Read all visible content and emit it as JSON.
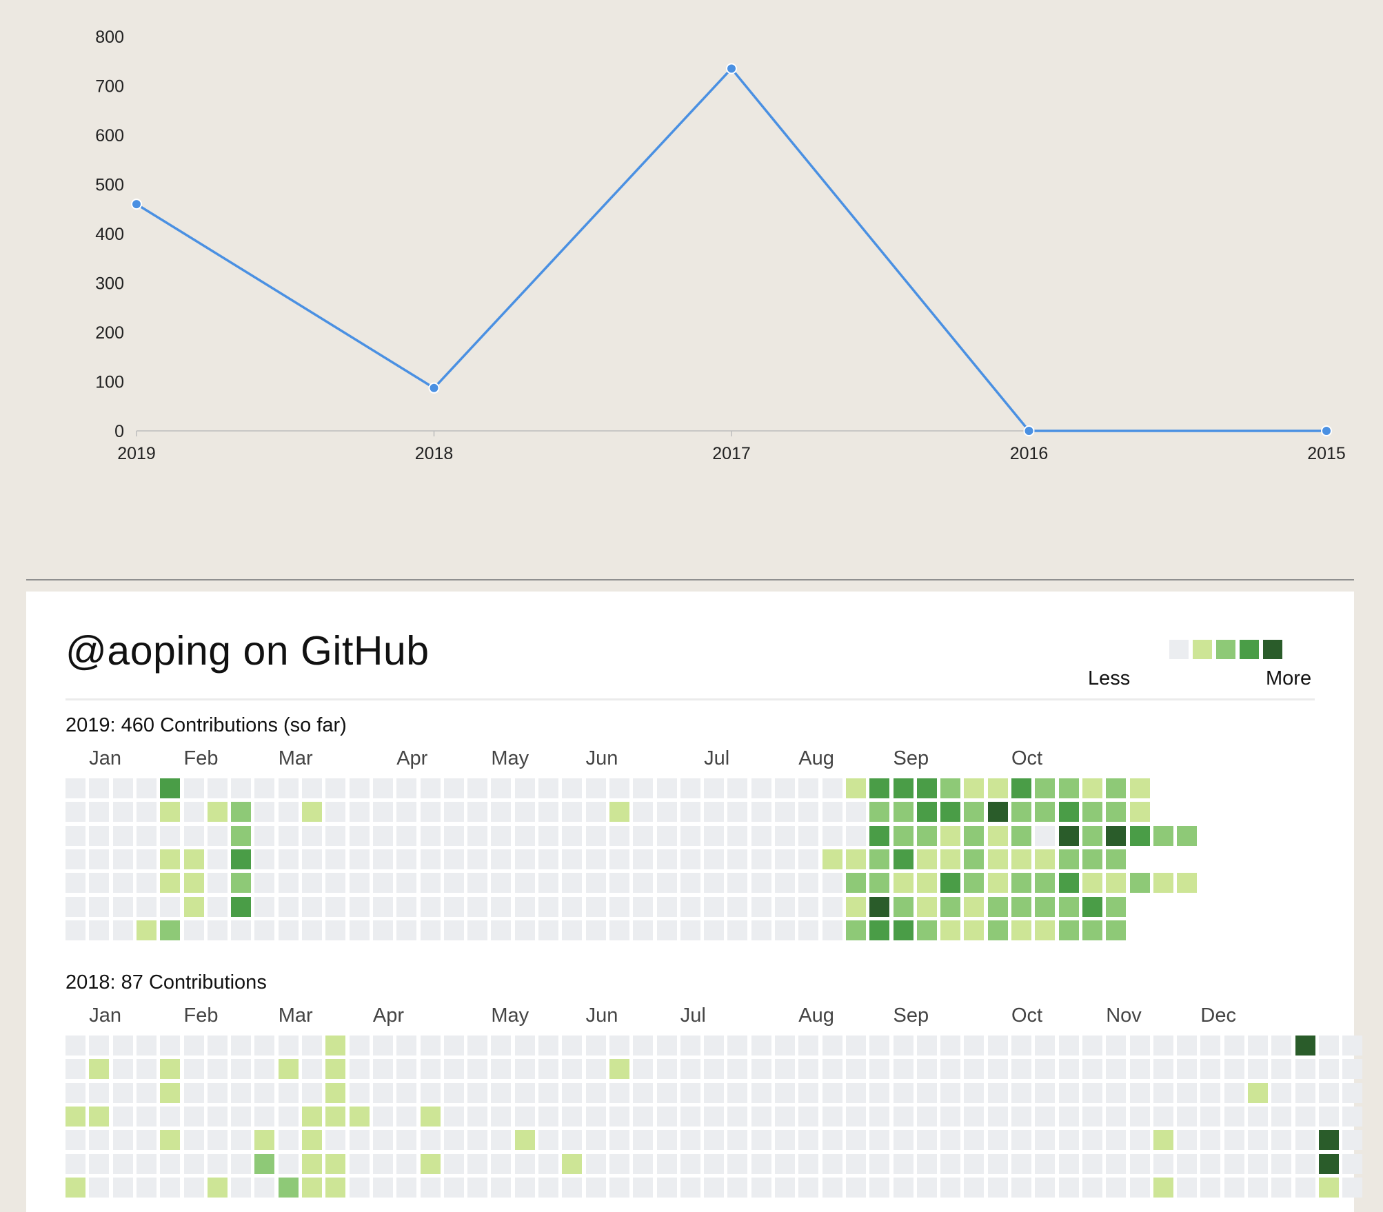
{
  "chart_data": {
    "type": "line",
    "categories": [
      "2019",
      "2018",
      "2017",
      "2016",
      "2015"
    ],
    "values": [
      460,
      87,
      735,
      0,
      0
    ],
    "yticks": [
      0,
      100,
      200,
      300,
      400,
      500,
      600,
      700,
      800
    ],
    "ylim": [
      0,
      800
    ],
    "title": "",
    "xlabel": "",
    "ylabel": "",
    "grid": false,
    "line_color": "#4a90e2"
  },
  "card": {
    "title": "@aoping on GitHub",
    "legend": {
      "less": "Less",
      "more": "More",
      "colors": [
        "#ebedf0",
        "#cde596",
        "#8ec977",
        "#4a9d47",
        "#2a5c2a"
      ]
    }
  },
  "years": [
    {
      "title": "2019: 460 Contributions (so far)",
      "months": [
        {
          "label": "Jan",
          "week": 1
        },
        {
          "label": "Feb",
          "week": 5
        },
        {
          "label": "Mar",
          "week": 9
        },
        {
          "label": "Apr",
          "week": 14
        },
        {
          "label": "May",
          "week": 18
        },
        {
          "label": "Jun",
          "week": 22
        },
        {
          "label": "Jul",
          "week": 27
        },
        {
          "label": "Aug",
          "week": 31
        },
        {
          "label": "Sep",
          "week": 35
        },
        {
          "label": "Oct",
          "week": 40
        }
      ],
      "grid": [
        "0000300000000000000000000000000001333211322121",
        "0000101200100000000000010000000000223324223221",
        "000000020000000000000000000000000032212120424322",
        "000011030000000000000000000000001123112111222",
        "000011020000000000000000000000000221132122311211",
        "000001030000000000000000000000000142121222232",
        "000120000000000000000000000000000233211211222"
      ]
    },
    {
      "title": "2018: 87 Contributions",
      "months": [
        {
          "label": "Jan",
          "week": 1
        },
        {
          "label": "Feb",
          "week": 5
        },
        {
          "label": "Mar",
          "week": 9
        },
        {
          "label": "Apr",
          "week": 13
        },
        {
          "label": "May",
          "week": 18
        },
        {
          "label": "Jun",
          "week": 22
        },
        {
          "label": "Jul",
          "week": 26
        },
        {
          "label": "Aug",
          "week": 31
        },
        {
          "label": "Sep",
          "week": 35
        },
        {
          "label": "Oct",
          "week": 40
        },
        {
          "label": "Nov",
          "week": 44
        },
        {
          "label": "Dec",
          "week": 48
        }
      ],
      "grid": [
        "0000000000010000000000000000000000000000000000000000400",
        "0100100001010000000000010000000000000000000000000000000",
        "0000100000010000000000000000000000000000000000000010000",
        "1100000000111001000000000000000000000000000000000000000",
        "0000100010100000000100000000000000000000000000100000040",
        "0000000020110001000001000000000000000000000000000000040",
        "1000001002110000000000000000000000000000000000100000010"
      ]
    }
  ]
}
